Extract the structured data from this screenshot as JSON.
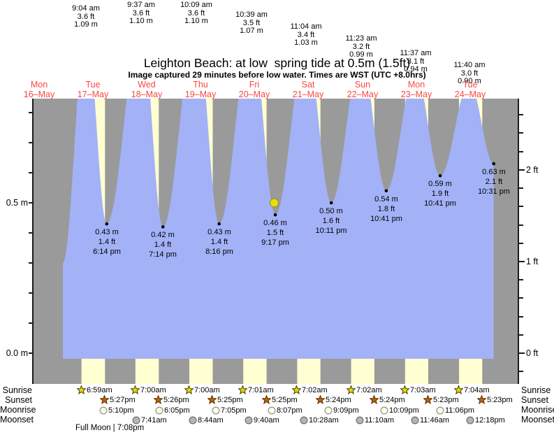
{
  "header": {
    "title": "Leighton Beach: at low  spring tide at 0.5m (1.5ft)",
    "subtitle": "Image captured 29 minutes before low water. Times are WST (UTC +8.0hrs)"
  },
  "colors": {
    "night_gray": "#9a9a9a",
    "water_blue": "#a3b2f7",
    "daylight_yellow": "#ffffd2",
    "day_label_red": "#fa4741",
    "marker_yellow": "#e8df00",
    "axis_dark": "#1c1c1c",
    "sunrise_star": "#f0d800",
    "sunset_star": "#bf6000",
    "moonrise_moon": "#ffffe3",
    "moonset_moon": "#b5b5b5"
  },
  "days": [
    {
      "name": "Mon",
      "date": "16–May"
    },
    {
      "name": "Tue",
      "date": "17–May"
    },
    {
      "name": "Wed",
      "date": "18–May"
    },
    {
      "name": "Thu",
      "date": "19–May"
    },
    {
      "name": "Fri",
      "date": "20–May"
    },
    {
      "name": "Sat",
      "date": "21–May"
    },
    {
      "name": "Sun",
      "date": "22–May"
    },
    {
      "name": "Mon",
      "date": "23–May"
    },
    {
      "name": "Tue",
      "date": "24–May"
    }
  ],
  "axes": {
    "left_labels": [
      {
        "text": "0.5 m",
        "m": 0.5
      },
      {
        "text": "0.0 m",
        "m": 0.0
      }
    ],
    "right_labels": [
      {
        "text": "2 ft",
        "ft": 2
      },
      {
        "text": "1 ft",
        "ft": 1
      },
      {
        "text": "0 ft",
        "ft": 0
      }
    ]
  },
  "chart_data": {
    "type": "area",
    "title": "Leighton Beach: at low  spring tide at 0.5m (1.5ft)",
    "units": {
      "left_axis": "m",
      "right_axis": "ft"
    },
    "y_axis": {
      "left_labeled_m": [
        0.5,
        0.0
      ],
      "left_minor_step_m": 0.1,
      "right_labeled_ft": [
        2,
        1,
        0
      ],
      "right_minor_step_ft": 0.2,
      "top_m": 0.85,
      "bottom_m": -0.1
    },
    "start_height_m": 0.3,
    "high_tides": [
      {
        "day": 1,
        "time": "9:04 am",
        "height_ft": "3.6 ft",
        "height_m": "1.09 m",
        "m": 1.09
      },
      {
        "day": 2,
        "time": "9:37 am",
        "height_ft": "3.6 ft",
        "height_m": "1.10 m",
        "m": 1.1
      },
      {
        "day": 3,
        "time": "10:09 am",
        "height_ft": "3.6 ft",
        "height_m": "1.10 m",
        "m": 1.1
      },
      {
        "day": 4,
        "time": "10:39 am",
        "height_ft": "3.5 ft",
        "height_m": "1.07 m",
        "m": 1.07
      },
      {
        "day": 5,
        "time": "11:04 am",
        "height_ft": "3.4 ft",
        "height_m": "1.03 m",
        "m": 1.03
      },
      {
        "day": 6,
        "time": "11:23 am",
        "height_ft": "3.2 ft",
        "height_m": "0.99 m",
        "m": 0.99
      },
      {
        "day": 7,
        "time": "11:37 am",
        "height_ft": "3.1 ft",
        "height_m": "0.94 m",
        "m": 0.94
      },
      {
        "day": 8,
        "time": "11:40 am",
        "height_ft": "3.0 ft",
        "height_m": "0.90 m",
        "m": 0.9
      }
    ],
    "low_tides": [
      {
        "day": 1,
        "time": "6:14 pm",
        "height_ft": "1.4 ft",
        "height_m": "0.43 m",
        "m": 0.43
      },
      {
        "day": 2,
        "time": "7:14 pm",
        "height_ft": "1.4 ft",
        "height_m": "0.42 m",
        "m": 0.42
      },
      {
        "day": 3,
        "time": "8:16 pm",
        "height_ft": "1.4 ft",
        "height_m": "0.43 m",
        "m": 0.43
      },
      {
        "day": 4,
        "time": "9:17 pm",
        "height_ft": "1.5 ft",
        "height_m": "0.46 m",
        "m": 0.46
      },
      {
        "day": 5,
        "time": "10:11 pm",
        "height_ft": "1.6 ft",
        "height_m": "0.50 m",
        "m": 0.5
      },
      {
        "day": 6,
        "time": "10:41 pm",
        "height_ft": "1.8 ft",
        "height_m": "0.54 m",
        "m": 0.54
      },
      {
        "day": 7,
        "time": "10:41 pm",
        "height_ft": "1.9 ft",
        "height_m": "0.59 m",
        "m": 0.59
      },
      {
        "day": 8,
        "time": "10:31 pm",
        "height_ft": "2.1 ft",
        "height_m": "0.63 m",
        "m": 0.63
      }
    ],
    "current_marker": {
      "day": 4,
      "hour": 20.8,
      "m": 0.5
    }
  },
  "astro": {
    "row_labels": [
      "Sunrise",
      "Sunset",
      "Moonrise",
      "Moonset"
    ],
    "sunrise": [
      {
        "day": 1,
        "time": "6:59am"
      },
      {
        "day": 2,
        "time": "7:00am"
      },
      {
        "day": 3,
        "time": "7:00am"
      },
      {
        "day": 4,
        "time": "7:01am"
      },
      {
        "day": 5,
        "time": "7:02am"
      },
      {
        "day": 6,
        "time": "7:02am"
      },
      {
        "day": 7,
        "time": "7:03am"
      },
      {
        "day": 8,
        "time": "7:04am"
      }
    ],
    "sunset": [
      {
        "day": 1,
        "time": "5:27pm"
      },
      {
        "day": 2,
        "time": "5:26pm"
      },
      {
        "day": 3,
        "time": "5:25pm"
      },
      {
        "day": 4,
        "time": "5:25pm"
      },
      {
        "day": 5,
        "time": "5:24pm"
      },
      {
        "day": 6,
        "time": "5:24pm"
      },
      {
        "day": 7,
        "time": "5:23pm"
      },
      {
        "day": 8,
        "time": "5:23pm"
      }
    ],
    "moonrise": [
      {
        "day": 1,
        "time": "5:10pm"
      },
      {
        "day": 2,
        "time": "6:05pm"
      },
      {
        "day": 3,
        "time": "7:05pm"
      },
      {
        "day": 4,
        "time": "8:07pm"
      },
      {
        "day": 5,
        "time": "9:09pm"
      },
      {
        "day": 6,
        "time": "10:09pm"
      },
      {
        "day": 7,
        "time": "11:06pm"
      }
    ],
    "moonset": [
      {
        "day": 2,
        "time": "7:41am"
      },
      {
        "day": 3,
        "time": "8:44am"
      },
      {
        "day": 4,
        "time": "9:40am"
      },
      {
        "day": 5,
        "time": "10:28am"
      },
      {
        "day": 6,
        "time": "11:10am"
      },
      {
        "day": 7,
        "time": "11:46am"
      },
      {
        "day": 8,
        "time": "12:18pm"
      }
    ],
    "footer": "Full Moon | 7:08pm"
  }
}
